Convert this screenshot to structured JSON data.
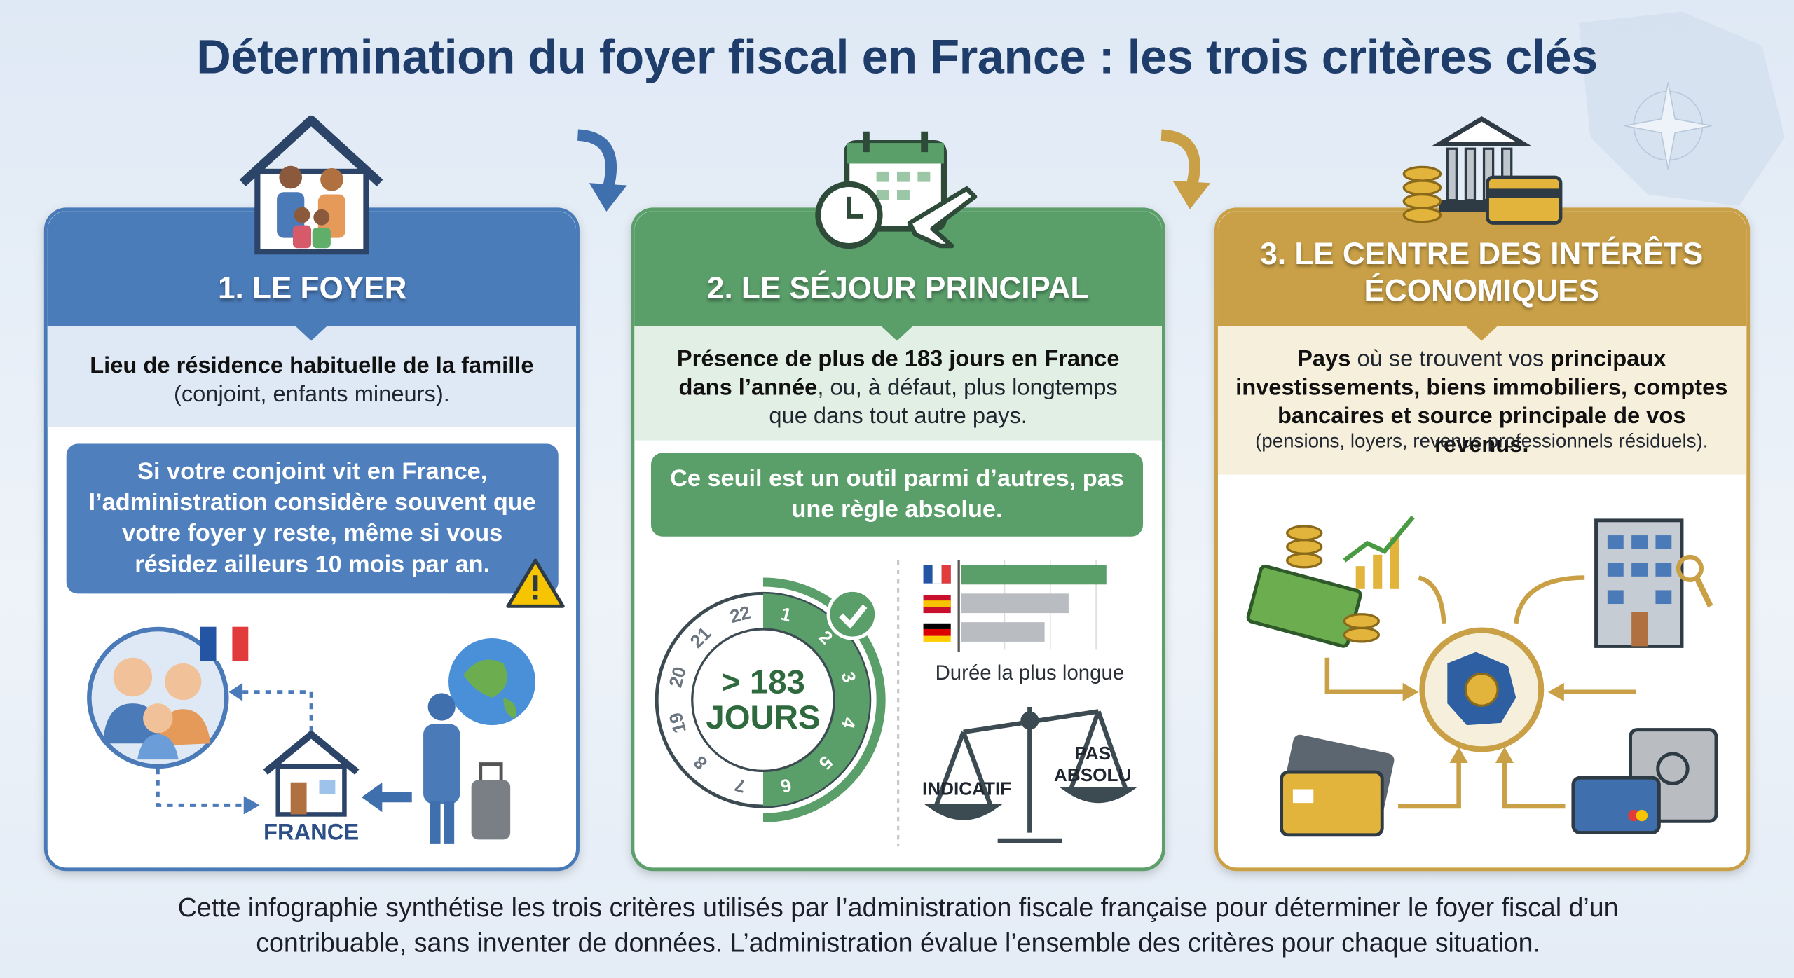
{
  "title": "Détermination du foyer fiscal en France : les trois critères clés",
  "cards": [
    {
      "heading": "1. LE FOYER",
      "description": [
        {
          "text": "Lieu de résidence habituelle de la famille",
          "bold": true
        },
        {
          "text": " (conjoint, enfants mineurs).",
          "bold": false
        }
      ],
      "note": "Si votre conjoint vit en France, l’administration considère souvent que votre foyer y reste, même si vous résidez ailleurs 10 mois par an.",
      "house_label": "FRANCE"
    },
    {
      "heading": "2. LE SÉJOUR PRINCIPAL",
      "description": [
        {
          "text": "Présence de plus de 183 jours en France dans l’année",
          "bold": true
        },
        {
          "text": ", ou, à défaut, plus longtemps que dans tout autre pays.",
          "bold": false
        }
      ],
      "note": "Ce seuil est un outil parmi d’autres, pas une règle absolue.",
      "dial_label": "> 183 JOURS",
      "dial_numbers": [
        "1",
        "2",
        "3",
        "4",
        "5",
        "6",
        "7",
        "8",
        "19",
        "20",
        "21",
        "22"
      ],
      "bars_label": "Durée la plus longue",
      "scale_left": "INDICATIF",
      "scale_right": "PAS ABSOLU"
    },
    {
      "heading": "3. LE CENTRE DES INTÉRÊTS ÉCONOMIQUES",
      "description": [
        {
          "text": "Pays",
          "bold": true
        },
        {
          "text": " où se trouvent vos ",
          "bold": false
        },
        {
          "text": "principaux investissements, biens immobiliers, comptes bancaires et source principale de vos revenus.",
          "bold": true
        }
      ],
      "detail": "(pensions, loyers, revenus professionnels résiduels)."
    }
  ],
  "footer": "Cette infographie synthétise les trois critères utilisés par l’administration fiscale française pour déterminer le foyer fiscal d’un contribuable, sans inventer de données. L’administration évalue l’ensemble des critères pour chaque situation."
}
